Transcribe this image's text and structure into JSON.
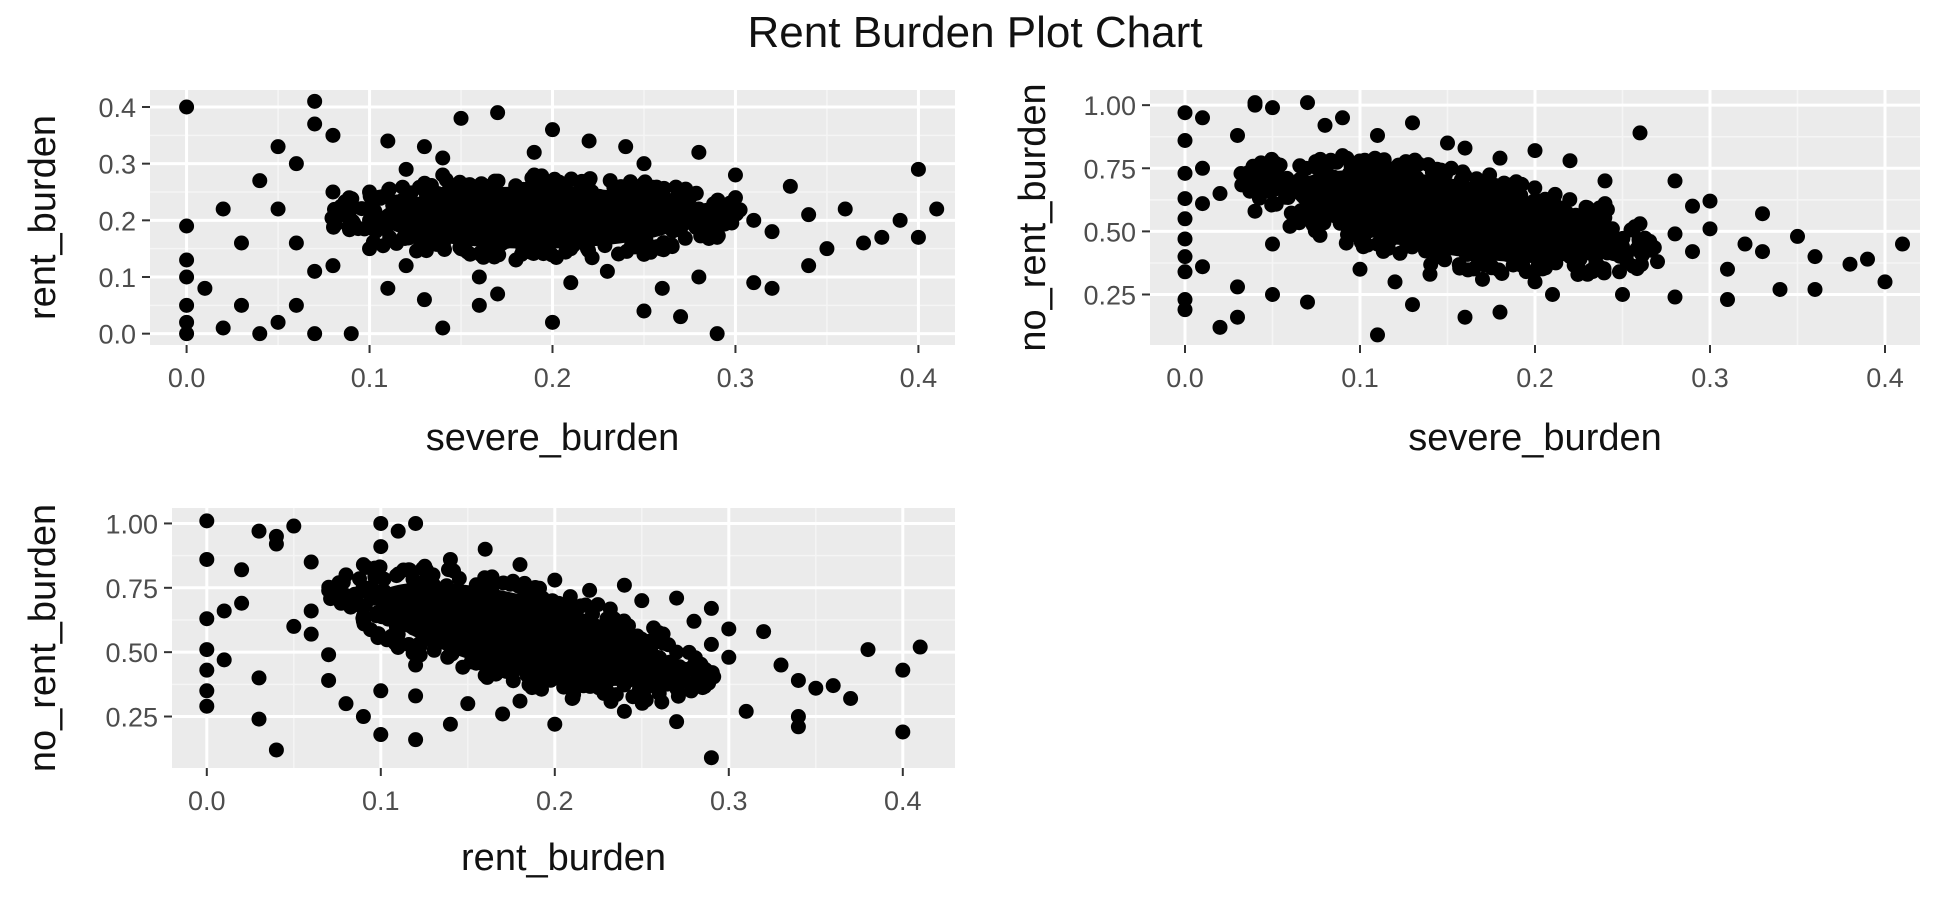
{
  "title": "Rent Burden Plot Chart",
  "colors": {
    "panel_background": "#EBEBEB",
    "grid_major": "#FFFFFF",
    "grid_minor": "#F5F5F5",
    "point": "#000000",
    "tick_text": "#4D4D4D"
  },
  "chart_data": [
    {
      "type": "scatter",
      "xlabel": "severe_burden",
      "ylabel": "rent_burden",
      "xlim": [
        -0.02,
        0.42
      ],
      "ylim": [
        -0.02,
        0.43
      ],
      "xticks": [
        0.0,
        0.1,
        0.2,
        0.3,
        0.4
      ],
      "xtick_labels": [
        "0.0",
        "0.1",
        "0.2",
        "0.3",
        "0.4"
      ],
      "yticks": [
        0.0,
        0.1,
        0.2,
        0.3,
        0.4
      ],
      "ytick_labels": [
        "0.0",
        "0.1",
        "0.2",
        "0.3",
        "0.4"
      ],
      "grid": true,
      "points": [
        [
          0.0,
          0.4
        ],
        [
          0.07,
          0.41
        ],
        [
          0.0,
          0.19
        ],
        [
          0.0,
          0.13
        ],
        [
          0.0,
          0.1
        ],
        [
          0.0,
          0.05
        ],
        [
          0.0,
          0.02
        ],
        [
          0.0,
          0.0
        ],
        [
          0.01,
          0.08
        ],
        [
          0.02,
          0.01
        ],
        [
          0.03,
          0.05
        ],
        [
          0.04,
          0.0
        ],
        [
          0.05,
          0.02
        ],
        [
          0.06,
          0.05
        ],
        [
          0.07,
          0.0
        ],
        [
          0.09,
          0.0
        ],
        [
          0.05,
          0.33
        ],
        [
          0.07,
          0.37
        ],
        [
          0.08,
          0.35
        ],
        [
          0.06,
          0.3
        ],
        [
          0.04,
          0.27
        ],
        [
          0.02,
          0.22
        ],
        [
          0.05,
          0.22
        ],
        [
          0.11,
          0.34
        ],
        [
          0.13,
          0.33
        ],
        [
          0.15,
          0.38
        ],
        [
          0.17,
          0.39
        ],
        [
          0.2,
          0.36
        ],
        [
          0.22,
          0.34
        ],
        [
          0.24,
          0.33
        ],
        [
          0.28,
          0.32
        ],
        [
          0.14,
          0.01
        ],
        [
          0.2,
          0.02
        ],
        [
          0.25,
          0.04
        ],
        [
          0.27,
          0.03
        ],
        [
          0.29,
          0.0
        ],
        [
          0.31,
          0.09
        ],
        [
          0.32,
          0.08
        ],
        [
          0.34,
          0.12
        ],
        [
          0.35,
          0.15
        ],
        [
          0.36,
          0.22
        ],
        [
          0.38,
          0.17
        ],
        [
          0.39,
          0.2
        ],
        [
          0.4,
          0.29
        ],
        [
          0.4,
          0.17
        ],
        [
          0.41,
          0.22
        ],
        [
          0.37,
          0.16
        ],
        [
          0.33,
          0.26
        ],
        [
          0.1,
          0.2
        ],
        [
          0.1,
          0.15
        ],
        [
          0.1,
          0.25
        ],
        [
          0.12,
          0.18
        ],
        [
          0.12,
          0.12
        ],
        [
          0.13,
          0.22
        ],
        [
          0.14,
          0.28
        ],
        [
          0.15,
          0.15
        ],
        [
          0.15,
          0.2
        ],
        [
          0.16,
          0.1
        ],
        [
          0.16,
          0.25
        ],
        [
          0.17,
          0.18
        ],
        [
          0.18,
          0.22
        ],
        [
          0.18,
          0.13
        ],
        [
          0.19,
          0.28
        ],
        [
          0.2,
          0.19
        ],
        [
          0.2,
          0.24
        ],
        [
          0.21,
          0.15
        ],
        [
          0.22,
          0.21
        ],
        [
          0.22,
          0.27
        ],
        [
          0.23,
          0.18
        ],
        [
          0.24,
          0.23
        ],
        [
          0.25,
          0.2
        ],
        [
          0.25,
          0.14
        ],
        [
          0.26,
          0.25
        ],
        [
          0.27,
          0.19
        ],
        [
          0.28,
          0.22
        ],
        [
          0.29,
          0.17
        ],
        [
          0.3,
          0.24
        ],
        [
          0.31,
          0.2
        ],
        [
          0.32,
          0.18
        ],
        [
          0.08,
          0.12
        ],
        [
          0.09,
          0.22
        ],
        [
          0.11,
          0.08
        ],
        [
          0.13,
          0.06
        ],
        [
          0.17,
          0.07
        ],
        [
          0.21,
          0.09
        ],
        [
          0.23,
          0.11
        ],
        [
          0.26,
          0.08
        ],
        [
          0.14,
          0.31
        ],
        [
          0.19,
          0.32
        ],
        [
          0.25,
          0.3
        ],
        [
          0.3,
          0.28
        ],
        [
          0.34,
          0.21
        ],
        [
          0.06,
          0.16
        ],
        [
          0.07,
          0.11
        ],
        [
          0.08,
          0.25
        ],
        [
          0.03,
          0.16
        ],
        [
          0.12,
          0.29
        ],
        [
          0.16,
          0.05
        ],
        [
          0.28,
          0.1
        ]
      ],
      "core": {
        "cx": 0.19,
        "cy": 0.205,
        "rx": 0.085,
        "ry": 0.055,
        "angle": 0
      }
    },
    {
      "type": "scatter",
      "xlabel": "severe_burden",
      "ylabel": "no_rent_burden",
      "xlim": [
        -0.02,
        0.42
      ],
      "ylim": [
        0.05,
        1.06
      ],
      "xticks": [
        0.0,
        0.1,
        0.2,
        0.3,
        0.4
      ],
      "xtick_labels": [
        "0.0",
        "0.1",
        "0.2",
        "0.3",
        "0.4"
      ],
      "yticks": [
        0.25,
        0.5,
        0.75,
        1.0
      ],
      "ytick_labels": [
        "0.25",
        "0.50",
        "0.75",
        "1.00"
      ],
      "grid": true,
      "points": [
        [
          0.0,
          0.97
        ],
        [
          0.0,
          0.86
        ],
        [
          0.0,
          0.73
        ],
        [
          0.0,
          0.63
        ],
        [
          0.0,
          0.55
        ],
        [
          0.0,
          0.47
        ],
        [
          0.0,
          0.4
        ],
        [
          0.0,
          0.34
        ],
        [
          0.0,
          0.23
        ],
        [
          0.0,
          0.19
        ],
        [
          0.01,
          0.95
        ],
        [
          0.01,
          0.75
        ],
        [
          0.01,
          0.61
        ],
        [
          0.01,
          0.36
        ],
        [
          0.02,
          0.12
        ],
        [
          0.03,
          0.16
        ],
        [
          0.03,
          0.28
        ],
        [
          0.04,
          1.0
        ],
        [
          0.04,
          1.01
        ],
        [
          0.05,
          0.99
        ],
        [
          0.03,
          0.88
        ],
        [
          0.05,
          0.45
        ],
        [
          0.05,
          0.25
        ],
        [
          0.07,
          0.22
        ],
        [
          0.07,
          1.01
        ],
        [
          0.08,
          0.92
        ],
        [
          0.09,
          0.95
        ],
        [
          0.11,
          0.09
        ],
        [
          0.13,
          0.93
        ],
        [
          0.15,
          0.85
        ],
        [
          0.18,
          0.79
        ],
        [
          0.2,
          0.82
        ],
        [
          0.22,
          0.78
        ],
        [
          0.26,
          0.89
        ],
        [
          0.28,
          0.7
        ],
        [
          0.3,
          0.62
        ],
        [
          0.33,
          0.57
        ],
        [
          0.35,
          0.48
        ],
        [
          0.36,
          0.4
        ],
        [
          0.38,
          0.37
        ],
        [
          0.39,
          0.39
        ],
        [
          0.4,
          0.3
        ],
        [
          0.41,
          0.45
        ],
        [
          0.36,
          0.27
        ],
        [
          0.34,
          0.27
        ],
        [
          0.31,
          0.23
        ],
        [
          0.28,
          0.24
        ],
        [
          0.25,
          0.25
        ],
        [
          0.21,
          0.25
        ],
        [
          0.18,
          0.18
        ],
        [
          0.16,
          0.16
        ],
        [
          0.13,
          0.21
        ],
        [
          0.09,
          0.57
        ],
        [
          0.1,
          0.68
        ],
        [
          0.11,
          0.45
        ],
        [
          0.12,
          0.62
        ],
        [
          0.12,
          0.75
        ],
        [
          0.13,
          0.54
        ],
        [
          0.14,
          0.66
        ],
        [
          0.15,
          0.49
        ],
        [
          0.15,
          0.58
        ],
        [
          0.16,
          0.72
        ],
        [
          0.17,
          0.41
        ],
        [
          0.18,
          0.55
        ],
        [
          0.19,
          0.63
        ],
        [
          0.2,
          0.47
        ],
        [
          0.21,
          0.58
        ],
        [
          0.22,
          0.4
        ],
        [
          0.23,
          0.52
        ],
        [
          0.24,
          0.61
        ],
        [
          0.25,
          0.44
        ],
        [
          0.26,
          0.53
        ],
        [
          0.27,
          0.38
        ],
        [
          0.28,
          0.49
        ],
        [
          0.29,
          0.42
        ],
        [
          0.3,
          0.51
        ],
        [
          0.31,
          0.35
        ],
        [
          0.32,
          0.45
        ],
        [
          0.08,
          0.72
        ],
        [
          0.07,
          0.6
        ],
        [
          0.06,
          0.66
        ],
        [
          0.09,
          0.8
        ],
        [
          0.1,
          0.35
        ],
        [
          0.12,
          0.3
        ],
        [
          0.14,
          0.33
        ],
        [
          0.17,
          0.31
        ],
        [
          0.2,
          0.3
        ],
        [
          0.23,
          0.33
        ],
        [
          0.06,
          0.52
        ],
        [
          0.04,
          0.58
        ],
        [
          0.02,
          0.65
        ],
        [
          0.11,
          0.88
        ],
        [
          0.16,
          0.83
        ],
        [
          0.24,
          0.7
        ],
        [
          0.29,
          0.6
        ],
        [
          0.33,
          0.42
        ]
      ],
      "core": {
        "cx": 0.15,
        "cy": 0.56,
        "rx": 0.09,
        "ry": 0.15,
        "angle": 10
      }
    },
    {
      "type": "scatter",
      "xlabel": "rent_burden",
      "ylabel": "no_rent_burden",
      "xlim": [
        -0.02,
        0.43
      ],
      "ylim": [
        0.05,
        1.06
      ],
      "xticks": [
        0.0,
        0.1,
        0.2,
        0.3,
        0.4
      ],
      "xtick_labels": [
        "0.0",
        "0.1",
        "0.2",
        "0.3",
        "0.4"
      ],
      "yticks": [
        0.25,
        0.5,
        0.75,
        1.0
      ],
      "ytick_labels": [
        "0.25",
        "0.50",
        "0.75",
        "1.00"
      ],
      "grid": true,
      "points": [
        [
          0.0,
          1.01
        ],
        [
          0.0,
          0.86
        ],
        [
          0.0,
          0.63
        ],
        [
          0.0,
          0.51
        ],
        [
          0.0,
          0.43
        ],
        [
          0.0,
          0.35
        ],
        [
          0.0,
          0.29
        ],
        [
          0.01,
          0.66
        ],
        [
          0.01,
          0.47
        ],
        [
          0.02,
          0.82
        ],
        [
          0.02,
          0.69
        ],
        [
          0.03,
          0.97
        ],
        [
          0.03,
          0.4
        ],
        [
          0.03,
          0.24
        ],
        [
          0.04,
          0.95
        ],
        [
          0.04,
          0.92
        ],
        [
          0.04,
          0.12
        ],
        [
          0.05,
          0.99
        ],
        [
          0.05,
          0.6
        ],
        [
          0.06,
          0.85
        ],
        [
          0.06,
          0.57
        ],
        [
          0.07,
          0.39
        ],
        [
          0.08,
          0.8
        ],
        [
          0.08,
          0.3
        ],
        [
          0.09,
          0.25
        ],
        [
          0.1,
          0.18
        ],
        [
          0.1,
          0.91
        ],
        [
          0.1,
          1.0
        ],
        [
          0.11,
          0.97
        ],
        [
          0.12,
          1.0
        ],
        [
          0.12,
          0.16
        ],
        [
          0.14,
          0.86
        ],
        [
          0.16,
          0.9
        ],
        [
          0.18,
          0.84
        ],
        [
          0.2,
          0.78
        ],
        [
          0.22,
          0.74
        ],
        [
          0.24,
          0.76
        ],
        [
          0.27,
          0.71
        ],
        [
          0.29,
          0.67
        ],
        [
          0.3,
          0.59
        ],
        [
          0.32,
          0.58
        ],
        [
          0.33,
          0.45
        ],
        [
          0.34,
          0.39
        ],
        [
          0.35,
          0.36
        ],
        [
          0.36,
          0.37
        ],
        [
          0.37,
          0.32
        ],
        [
          0.38,
          0.51
        ],
        [
          0.4,
          0.43
        ],
        [
          0.41,
          0.52
        ],
        [
          0.4,
          0.19
        ],
        [
          0.34,
          0.25
        ],
        [
          0.34,
          0.21
        ],
        [
          0.31,
          0.27
        ],
        [
          0.29,
          0.09
        ],
        [
          0.27,
          0.23
        ],
        [
          0.24,
          0.27
        ],
        [
          0.2,
          0.22
        ],
        [
          0.17,
          0.26
        ],
        [
          0.14,
          0.22
        ],
        [
          0.11,
          0.57
        ],
        [
          0.12,
          0.45
        ],
        [
          0.13,
          0.68
        ],
        [
          0.14,
          0.52
        ],
        [
          0.15,
          0.62
        ],
        [
          0.16,
          0.41
        ],
        [
          0.17,
          0.55
        ],
        [
          0.18,
          0.66
        ],
        [
          0.19,
          0.48
        ],
        [
          0.2,
          0.58
        ],
        [
          0.21,
          0.44
        ],
        [
          0.22,
          0.53
        ],
        [
          0.23,
          0.63
        ],
        [
          0.24,
          0.46
        ],
        [
          0.25,
          0.55
        ],
        [
          0.26,
          0.4
        ],
        [
          0.27,
          0.5
        ],
        [
          0.28,
          0.45
        ],
        [
          0.29,
          0.53
        ],
        [
          0.09,
          0.62
        ],
        [
          0.08,
          0.72
        ],
        [
          0.07,
          0.49
        ],
        [
          0.06,
          0.66
        ],
        [
          0.1,
          0.35
        ],
        [
          0.12,
          0.33
        ],
        [
          0.15,
          0.3
        ],
        [
          0.18,
          0.31
        ],
        [
          0.21,
          0.32
        ],
        [
          0.23,
          0.35
        ],
        [
          0.26,
          0.34
        ],
        [
          0.09,
          0.84
        ],
        [
          0.13,
          0.8
        ],
        [
          0.25,
          0.7
        ],
        [
          0.28,
          0.62
        ],
        [
          0.3,
          0.48
        ]
      ],
      "core": {
        "cx": 0.18,
        "cy": 0.57,
        "rx": 0.085,
        "ry": 0.15,
        "angle": 14
      }
    }
  ]
}
